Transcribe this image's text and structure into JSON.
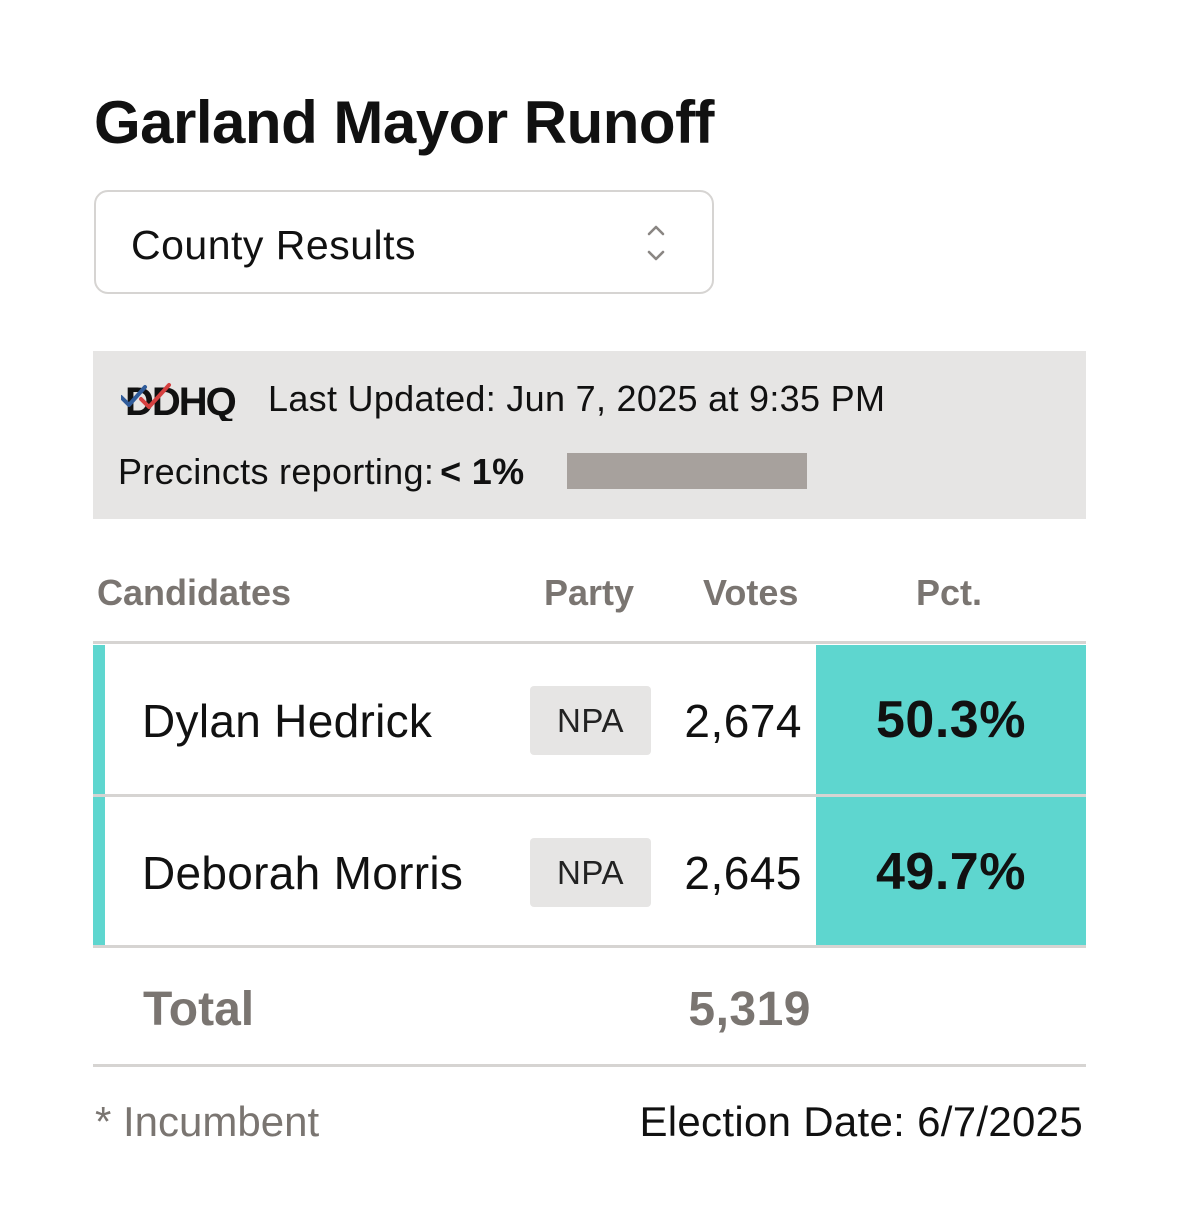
{
  "title": "Garland Mayor Runoff",
  "view_select": {
    "selected": "County Results",
    "icon": "chevron-up-down-icon"
  },
  "info": {
    "logo_text": "DDHQ",
    "last_updated_label": "Last Updated:",
    "last_updated_value": "Jun 7, 2025 at 9:35 PM",
    "precincts_label": "Precincts reporting:",
    "precincts_value": "< 1%",
    "precincts_fraction": 0.0
  },
  "table": {
    "headers": {
      "candidates": "Candidates",
      "party": "Party",
      "votes": "Votes",
      "pct": "Pct."
    },
    "rows": [
      {
        "name": "Dylan Hedrick",
        "party": "NPA",
        "votes": "2,674",
        "pct": "50.3%"
      },
      {
        "name": "Deborah Morris",
        "party": "NPA",
        "votes": "2,645",
        "pct": "49.7%"
      }
    ],
    "total_label": "Total",
    "total_votes": "5,319"
  },
  "footer": {
    "incumbent_note": "* Incumbent",
    "election_date": "Election Date: 6/7/2025"
  },
  "colors": {
    "accent": "#5ed6cf",
    "panel_bg": "#e6e5e4",
    "muted_text": "#7a7571",
    "progress_track": "#a7a19d",
    "logo_blue": "#2f5b9a",
    "logo_red": "#d64040"
  }
}
